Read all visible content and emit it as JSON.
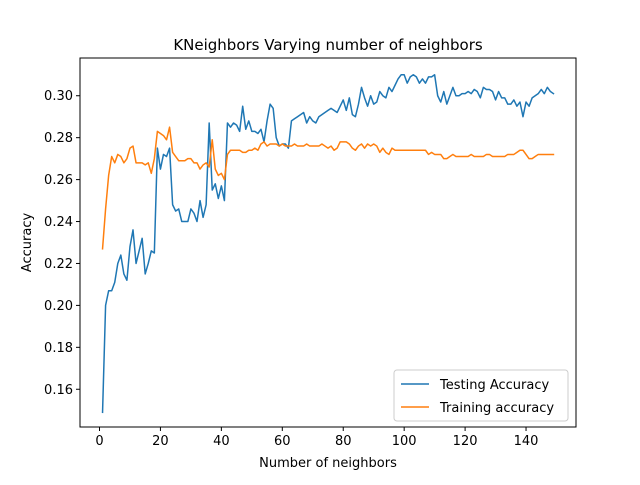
{
  "chart_data": {
    "type": "line",
    "title": "KNeighbors Varying number of neighbors",
    "xlabel": "Number of neighbors",
    "ylabel": "Accuracy",
    "xlim": [
      -6.4,
      156.4
    ],
    "ylim": [
      0.142,
      0.318
    ],
    "x_ticks": [
      0,
      20,
      40,
      60,
      80,
      100,
      120,
      140
    ],
    "x_tick_labels": [
      "0",
      "20",
      "40",
      "60",
      "80",
      "100",
      "120",
      "140"
    ],
    "y_ticks": [
      0.16,
      0.18,
      0.2,
      0.22,
      0.24,
      0.26,
      0.28,
      0.3
    ],
    "y_tick_labels": [
      "0.16",
      "0.18",
      "0.20",
      "0.22",
      "0.24",
      "0.26",
      "0.28",
      "0.30"
    ],
    "grid": false,
    "legend_position": "lower-right",
    "series": [
      {
        "name": "Testing Accuracy",
        "color": "#1f77b4",
        "points": [
          [
            1,
            0.149
          ],
          [
            2,
            0.2
          ],
          [
            3,
            0.207
          ],
          [
            4,
            0.207
          ],
          [
            5,
            0.211
          ],
          [
            6,
            0.22
          ],
          [
            7,
            0.224
          ],
          [
            8,
            0.215
          ],
          [
            9,
            0.212
          ],
          [
            10,
            0.228
          ],
          [
            11,
            0.236
          ],
          [
            12,
            0.22
          ],
          [
            13,
            0.226
          ],
          [
            14,
            0.232
          ],
          [
            15,
            0.215
          ],
          [
            16,
            0.22
          ],
          [
            17,
            0.226
          ],
          [
            18,
            0.225
          ],
          [
            19,
            0.275
          ],
          [
            20,
            0.265
          ],
          [
            21,
            0.272
          ],
          [
            22,
            0.271
          ],
          [
            23,
            0.275
          ],
          [
            24,
            0.248
          ],
          [
            25,
            0.245
          ],
          [
            26,
            0.246
          ],
          [
            27,
            0.24
          ],
          [
            28,
            0.24
          ],
          [
            29,
            0.24
          ],
          [
            30,
            0.246
          ],
          [
            31,
            0.244
          ],
          [
            32,
            0.24
          ],
          [
            33,
            0.25
          ],
          [
            34,
            0.242
          ],
          [
            35,
            0.248
          ],
          [
            36,
            0.287
          ],
          [
            37,
            0.255
          ],
          [
            38,
            0.258
          ],
          [
            39,
            0.251
          ],
          [
            40,
            0.257
          ],
          [
            41,
            0.25
          ],
          [
            42,
            0.287
          ],
          [
            43,
            0.285
          ],
          [
            44,
            0.287
          ],
          [
            45,
            0.286
          ],
          [
            46,
            0.283
          ],
          [
            47,
            0.295
          ],
          [
            48,
            0.284
          ],
          [
            49,
            0.288
          ],
          [
            50,
            0.283
          ],
          [
            51,
            0.283
          ],
          [
            52,
            0.282
          ],
          [
            53,
            0.284
          ],
          [
            54,
            0.278
          ],
          [
            55,
            0.288
          ],
          [
            56,
            0.296
          ],
          [
            57,
            0.294
          ],
          [
            58,
            0.28
          ],
          [
            59,
            0.276
          ],
          [
            60,
            0.277
          ],
          [
            61,
            0.277
          ],
          [
            62,
            0.275
          ],
          [
            63,
            0.288
          ],
          [
            64,
            0.289
          ],
          [
            65,
            0.29
          ],
          [
            66,
            0.291
          ],
          [
            67,
            0.292
          ],
          [
            68,
            0.287
          ],
          [
            69,
            0.29
          ],
          [
            70,
            0.288
          ],
          [
            71,
            0.287
          ],
          [
            72,
            0.29
          ],
          [
            73,
            0.291
          ],
          [
            74,
            0.292
          ],
          [
            75,
            0.293
          ],
          [
            76,
            0.294
          ],
          [
            77,
            0.293
          ],
          [
            78,
            0.292
          ],
          [
            79,
            0.295
          ],
          [
            80,
            0.298
          ],
          [
            81,
            0.293
          ],
          [
            82,
            0.299
          ],
          [
            83,
            0.291
          ],
          [
            84,
            0.29
          ],
          [
            85,
            0.296
          ],
          [
            86,
            0.304
          ],
          [
            87,
            0.299
          ],
          [
            88,
            0.295
          ],
          [
            89,
            0.3
          ],
          [
            90,
            0.296
          ],
          [
            91,
            0.297
          ],
          [
            92,
            0.302
          ],
          [
            93,
            0.3
          ],
          [
            94,
            0.299
          ],
          [
            95,
            0.304
          ],
          [
            96,
            0.302
          ],
          [
            97,
            0.305
          ],
          [
            98,
            0.308
          ],
          [
            99,
            0.31
          ],
          [
            100,
            0.31
          ],
          [
            101,
            0.306
          ],
          [
            102,
            0.309
          ],
          [
            103,
            0.31
          ],
          [
            104,
            0.309
          ],
          [
            105,
            0.306
          ],
          [
            106,
            0.308
          ],
          [
            107,
            0.306
          ],
          [
            108,
            0.309
          ],
          [
            109,
            0.309
          ],
          [
            110,
            0.31
          ],
          [
            111,
            0.3
          ],
          [
            112,
            0.297
          ],
          [
            113,
            0.302
          ],
          [
            114,
            0.296
          ],
          [
            115,
            0.3
          ],
          [
            116,
            0.304
          ],
          [
            117,
            0.3
          ],
          [
            118,
            0.3
          ],
          [
            119,
            0.301
          ],
          [
            120,
            0.301
          ],
          [
            121,
            0.302
          ],
          [
            122,
            0.301
          ],
          [
            123,
            0.303
          ],
          [
            124,
            0.302
          ],
          [
            125,
            0.299
          ],
          [
            126,
            0.304
          ],
          [
            127,
            0.303
          ],
          [
            128,
            0.303
          ],
          [
            129,
            0.302
          ],
          [
            130,
            0.298
          ],
          [
            131,
            0.302
          ],
          [
            132,
            0.299
          ],
          [
            133,
            0.299
          ],
          [
            134,
            0.296
          ],
          [
            135,
            0.296
          ],
          [
            136,
            0.298
          ],
          [
            137,
            0.295
          ],
          [
            138,
            0.297
          ],
          [
            139,
            0.29
          ],
          [
            140,
            0.297
          ],
          [
            141,
            0.295
          ],
          [
            142,
            0.299
          ],
          [
            143,
            0.3
          ],
          [
            144,
            0.301
          ],
          [
            145,
            0.303
          ],
          [
            146,
            0.301
          ],
          [
            147,
            0.304
          ],
          [
            148,
            0.302
          ],
          [
            149,
            0.301
          ]
        ]
      },
      {
        "name": "Training accuracy",
        "color": "#ff7f0e",
        "points": [
          [
            1,
            0.227
          ],
          [
            2,
            0.246
          ],
          [
            3,
            0.262
          ],
          [
            4,
            0.271
          ],
          [
            5,
            0.268
          ],
          [
            6,
            0.272
          ],
          [
            7,
            0.271
          ],
          [
            8,
            0.268
          ],
          [
            9,
            0.27
          ],
          [
            10,
            0.275
          ],
          [
            11,
            0.276
          ],
          [
            12,
            0.268
          ],
          [
            13,
            0.268
          ],
          [
            14,
            0.268
          ],
          [
            15,
            0.267
          ],
          [
            16,
            0.268
          ],
          [
            17,
            0.263
          ],
          [
            18,
            0.27
          ],
          [
            19,
            0.283
          ],
          [
            20,
            0.282
          ],
          [
            21,
            0.281
          ],
          [
            22,
            0.279
          ],
          [
            23,
            0.285
          ],
          [
            24,
            0.273
          ],
          [
            25,
            0.271
          ],
          [
            26,
            0.269
          ],
          [
            27,
            0.269
          ],
          [
            28,
            0.269
          ],
          [
            29,
            0.27
          ],
          [
            30,
            0.27
          ],
          [
            31,
            0.268
          ],
          [
            32,
            0.268
          ],
          [
            33,
            0.265
          ],
          [
            34,
            0.267
          ],
          [
            35,
            0.268
          ],
          [
            36,
            0.266
          ],
          [
            37,
            0.279
          ],
          [
            38,
            0.265
          ],
          [
            39,
            0.262
          ],
          [
            40,
            0.263
          ],
          [
            41,
            0.26
          ],
          [
            42,
            0.272
          ],
          [
            43,
            0.274
          ],
          [
            44,
            0.274
          ],
          [
            45,
            0.274
          ],
          [
            46,
            0.274
          ],
          [
            47,
            0.273
          ],
          [
            48,
            0.273
          ],
          [
            49,
            0.274
          ],
          [
            50,
            0.274
          ],
          [
            51,
            0.275
          ],
          [
            52,
            0.274
          ],
          [
            53,
            0.277
          ],
          [
            54,
            0.278
          ],
          [
            55,
            0.276
          ],
          [
            56,
            0.277
          ],
          [
            57,
            0.277
          ],
          [
            58,
            0.277
          ],
          [
            59,
            0.276
          ],
          [
            60,
            0.277
          ],
          [
            61,
            0.276
          ],
          [
            62,
            0.276
          ],
          [
            63,
            0.276
          ],
          [
            64,
            0.277
          ],
          [
            65,
            0.276
          ],
          [
            66,
            0.276
          ],
          [
            67,
            0.276
          ],
          [
            68,
            0.277
          ],
          [
            69,
            0.276
          ],
          [
            70,
            0.276
          ],
          [
            71,
            0.276
          ],
          [
            72,
            0.276
          ],
          [
            73,
            0.277
          ],
          [
            74,
            0.276
          ],
          [
            75,
            0.275
          ],
          [
            76,
            0.276
          ],
          [
            77,
            0.274
          ],
          [
            78,
            0.275
          ],
          [
            79,
            0.278
          ],
          [
            80,
            0.278
          ],
          [
            81,
            0.278
          ],
          [
            82,
            0.277
          ],
          [
            83,
            0.275
          ],
          [
            84,
            0.274
          ],
          [
            85,
            0.276
          ],
          [
            86,
            0.277
          ],
          [
            87,
            0.275
          ],
          [
            88,
            0.277
          ],
          [
            89,
            0.276
          ],
          [
            90,
            0.277
          ],
          [
            91,
            0.276
          ],
          [
            92,
            0.273
          ],
          [
            93,
            0.275
          ],
          [
            94,
            0.273
          ],
          [
            95,
            0.272
          ],
          [
            96,
            0.275
          ],
          [
            97,
            0.274
          ],
          [
            98,
            0.274
          ],
          [
            99,
            0.274
          ],
          [
            100,
            0.274
          ],
          [
            101,
            0.274
          ],
          [
            102,
            0.274
          ],
          [
            103,
            0.274
          ],
          [
            104,
            0.274
          ],
          [
            105,
            0.274
          ],
          [
            106,
            0.274
          ],
          [
            107,
            0.274
          ],
          [
            108,
            0.272
          ],
          [
            109,
            0.273
          ],
          [
            110,
            0.272
          ],
          [
            111,
            0.272
          ],
          [
            112,
            0.272
          ],
          [
            113,
            0.27
          ],
          [
            114,
            0.27
          ],
          [
            115,
            0.271
          ],
          [
            116,
            0.272
          ],
          [
            117,
            0.271
          ],
          [
            118,
            0.271
          ],
          [
            119,
            0.271
          ],
          [
            120,
            0.271
          ],
          [
            121,
            0.271
          ],
          [
            122,
            0.272
          ],
          [
            123,
            0.271
          ],
          [
            124,
            0.271
          ],
          [
            125,
            0.271
          ],
          [
            126,
            0.271
          ],
          [
            127,
            0.272
          ],
          [
            128,
            0.272
          ],
          [
            129,
            0.271
          ],
          [
            130,
            0.271
          ],
          [
            131,
            0.271
          ],
          [
            132,
            0.271
          ],
          [
            133,
            0.271
          ],
          [
            134,
            0.272
          ],
          [
            135,
            0.272
          ],
          [
            136,
            0.272
          ],
          [
            137,
            0.273
          ],
          [
            138,
            0.274
          ],
          [
            139,
            0.274
          ],
          [
            140,
            0.272
          ],
          [
            141,
            0.27
          ],
          [
            142,
            0.27
          ],
          [
            143,
            0.271
          ],
          [
            144,
            0.272
          ],
          [
            145,
            0.272
          ],
          [
            146,
            0.272
          ],
          [
            147,
            0.272
          ],
          [
            148,
            0.272
          ],
          [
            149,
            0.272
          ]
        ]
      }
    ]
  }
}
